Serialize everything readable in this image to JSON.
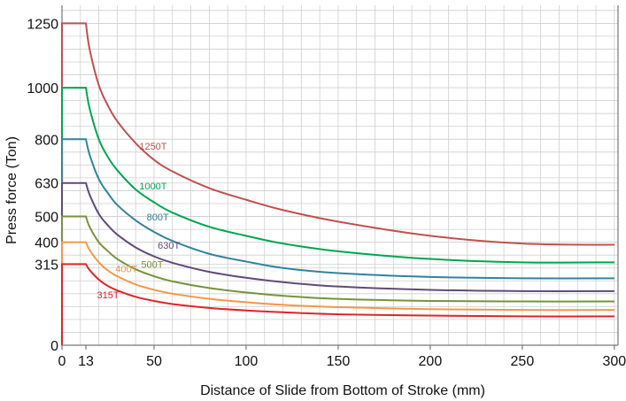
{
  "chart_data": {
    "type": "line",
    "xlabel": "Distance of Slide from Bottom of Stroke (mm)",
    "ylabel": "Press force (Ton)",
    "xlim": [
      0,
      302
    ],
    "ylim": [
      0,
      1320
    ],
    "x_ticks": [
      0,
      13,
      50,
      100,
      150,
      200,
      250,
      300
    ],
    "x_tick_labels": [
      "0",
      "13",
      "50",
      "100",
      "150",
      "200",
      "250",
      "300"
    ],
    "y_ticks": [
      0,
      315,
      400,
      500,
      630,
      800,
      1000,
      1250
    ],
    "y_tick_labels": [
      "0",
      "315",
      "400",
      "500",
      "630",
      "800",
      "1000",
      "1250"
    ],
    "grid": true,
    "rated_point_mm": 13,
    "series": [
      {
        "name": "1250T",
        "color": "#c0504d",
        "rated": 1250,
        "label_at": [
          42,
          760
        ],
        "x": [
          0,
          13,
          15,
          20,
          25,
          30,
          40,
          50,
          60,
          80,
          100,
          120,
          150,
          200,
          250,
          300
        ],
        "y": [
          1250,
          1250,
          1150,
          1010,
          930,
          870,
          785,
          720,
          675,
          610,
          565,
          525,
          480,
          425,
          395,
          390
        ]
      },
      {
        "name": "1000T",
        "color": "#00a651",
        "rated": 1000,
        "label_at": [
          42,
          605
        ],
        "x": [
          0,
          13,
          15,
          20,
          25,
          30,
          40,
          50,
          60,
          80,
          100,
          120,
          150,
          200,
          250,
          300
        ],
        "y": [
          1000,
          1000,
          920,
          800,
          730,
          680,
          605,
          555,
          515,
          460,
          425,
          395,
          365,
          335,
          322,
          322
        ]
      },
      {
        "name": "800T",
        "color": "#31849b",
        "rated": 800,
        "label_at": [
          46,
          485
        ],
        "x": [
          0,
          13,
          15,
          20,
          25,
          30,
          40,
          50,
          60,
          80,
          100,
          120,
          150,
          200,
          250,
          300
        ],
        "y": [
          800,
          800,
          740,
          645,
          590,
          545,
          485,
          440,
          405,
          355,
          325,
          300,
          280,
          265,
          260,
          260
        ]
      },
      {
        "name": "630T",
        "color": "#604a7b",
        "rated": 630,
        "label_at": [
          52,
          375
        ],
        "x": [
          0,
          13,
          15,
          20,
          25,
          30,
          40,
          50,
          60,
          80,
          100,
          120,
          150,
          200,
          250,
          300
        ],
        "y": [
          630,
          630,
          585,
          510,
          465,
          430,
          380,
          345,
          320,
          285,
          262,
          245,
          228,
          215,
          210,
          210
        ]
      },
      {
        "name": "500T",
        "color": "#77933c",
        "rated": 500,
        "label_at": [
          43,
          300
        ],
        "x": [
          0,
          13,
          15,
          20,
          25,
          30,
          40,
          50,
          60,
          80,
          100,
          120,
          150,
          200,
          250,
          300
        ],
        "y": [
          500,
          500,
          460,
          400,
          365,
          335,
          295,
          268,
          248,
          222,
          205,
          192,
          180,
          172,
          170,
          170
        ]
      },
      {
        "name": "400T",
        "color": "#f79646",
        "rated": 400,
        "label_at": [
          29,
          283
        ],
        "x": [
          0,
          13,
          15,
          20,
          25,
          30,
          40,
          50,
          60,
          80,
          100,
          120,
          150,
          200,
          250,
          300
        ],
        "y": [
          400,
          400,
          370,
          322,
          290,
          268,
          236,
          215,
          200,
          180,
          167,
          157,
          148,
          140,
          137,
          137
        ]
      },
      {
        "name": "315T",
        "color": "#e0242a",
        "rated": 315,
        "label_at": [
          19,
          182
        ],
        "x": [
          0,
          13,
          15,
          20,
          25,
          30,
          40,
          50,
          60,
          80,
          100,
          120,
          150,
          200,
          250,
          300
        ],
        "y": [
          315,
          315,
          292,
          255,
          230,
          213,
          188,
          172,
          160,
          145,
          135,
          128,
          120,
          115,
          112,
          112
        ]
      }
    ]
  }
}
